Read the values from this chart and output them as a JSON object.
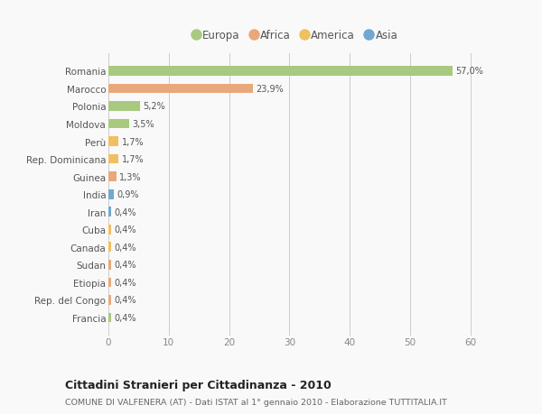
{
  "countries": [
    "Romania",
    "Marocco",
    "Polonia",
    "Moldova",
    "Perù",
    "Rep. Dominicana",
    "Guinea",
    "India",
    "Iran",
    "Cuba",
    "Canada",
    "Sudan",
    "Etiopia",
    "Rep. del Congo",
    "Francia"
  ],
  "values": [
    57.0,
    23.9,
    5.2,
    3.5,
    1.7,
    1.7,
    1.3,
    0.9,
    0.4,
    0.4,
    0.4,
    0.4,
    0.4,
    0.4,
    0.4
  ],
  "labels": [
    "57,0%",
    "23,9%",
    "5,2%",
    "3,5%",
    "1,7%",
    "1,7%",
    "1,3%",
    "0,9%",
    "0,4%",
    "0,4%",
    "0,4%",
    "0,4%",
    "0,4%",
    "0,4%",
    "0,4%"
  ],
  "continents": [
    "Europa",
    "Africa",
    "Europa",
    "Europa",
    "America",
    "America",
    "Africa",
    "Asia",
    "Asia",
    "America",
    "America",
    "Africa",
    "Africa",
    "Africa",
    "Europa"
  ],
  "colors": {
    "Europa": "#a8c97f",
    "Africa": "#e8a87c",
    "America": "#f0c060",
    "Asia": "#6fa8d0"
  },
  "legend_order": [
    "Europa",
    "Africa",
    "America",
    "Asia"
  ],
  "title": "Cittadini Stranieri per Cittadinanza - 2010",
  "subtitle": "COMUNE DI VALFENERA (AT) - Dati ISTAT al 1° gennaio 2010 - Elaborazione TUTTITALIA.IT",
  "xlim": [
    0,
    62
  ],
  "xticks": [
    0,
    10,
    20,
    30,
    40,
    50,
    60
  ],
  "background_color": "#f9f9f9"
}
